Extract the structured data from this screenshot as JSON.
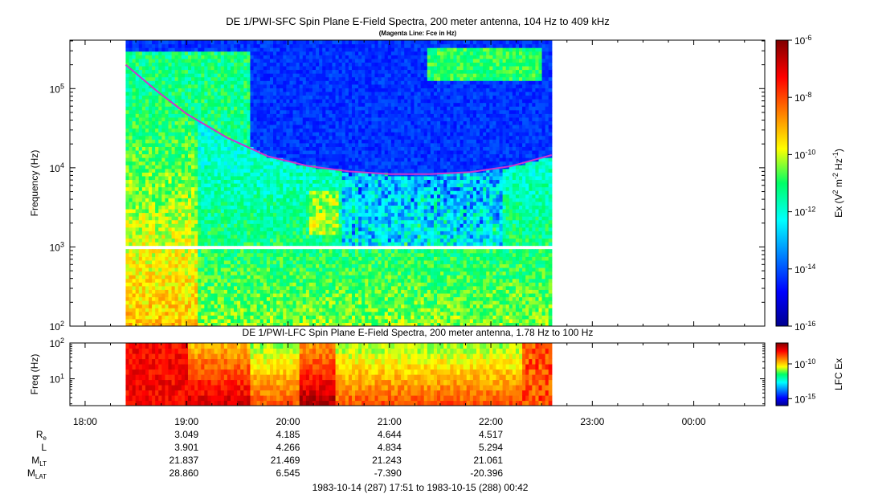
{
  "chart_data": [
    {
      "type": "heatmap",
      "title": "DE 1/PWI-SFC  Spin Plane E-Field Spectra, 200 meter antenna, 104 Hz to 409 kHz",
      "subtitle": "(Magenta Line: Fce in Hz)",
      "ylabel": "Frequency (Hz)",
      "y_scale": "log",
      "ylim": [
        100,
        409000
      ],
      "y_ticks": [
        {
          "value": 100,
          "base": "10",
          "exp": "2"
        },
        {
          "value": 1000,
          "base": "10",
          "exp": "3"
        },
        {
          "value": 10000,
          "base": "10",
          "exp": "4"
        },
        {
          "value": 100000,
          "base": "10",
          "exp": "5"
        }
      ],
      "x_range_hours": [
        17.85,
        24.7
      ],
      "data_time_range_hours": [
        18.4,
        22.6
      ],
      "colorbar": {
        "label": "Ex (V2 m-2 Hz-1)",
        "label_parts": [
          "Ex (V",
          "2",
          " m",
          "-2",
          " Hz",
          "-1",
          ")"
        ],
        "scale": "log",
        "range": [
          1e-16,
          1e-06
        ],
        "ticks": [
          {
            "value": 1e-06,
            "base": "10",
            "exp": "-6"
          },
          {
            "value": 1e-08,
            "base": "10",
            "exp": "-8"
          },
          {
            "value": 1e-10,
            "base": "10",
            "exp": "-10"
          },
          {
            "value": 1e-12,
            "base": "10",
            "exp": "-12"
          },
          {
            "value": 1e-14,
            "base": "10",
            "exp": "-14"
          },
          {
            "value": 1e-16,
            "base": "10",
            "exp": "-16"
          }
        ]
      },
      "series": [
        {
          "name": "Fce",
          "color": "#cc33cc",
          "x_hours": [
            18.4,
            18.7,
            19.0,
            19.4,
            19.8,
            20.2,
            20.6,
            21.0,
            21.4,
            21.8,
            22.2,
            22.6
          ],
          "y_hz": [
            200000,
            95000,
            48000,
            24000,
            14000,
            10500,
            9000,
            8300,
            8300,
            8800,
            10500,
            14500
          ]
        }
      ]
    },
    {
      "type": "heatmap",
      "title": "DE 1/PWI-LFC  Spin Plane E-Field Spectra, 200 meter antenna, 1.78 Hz to 100 Hz",
      "ylabel": "Freq (Hz)",
      "y_scale": "log",
      "ylim": [
        1.78,
        100
      ],
      "y_ticks": [
        {
          "value": 10,
          "base": "10",
          "exp": "1"
        },
        {
          "value": 100,
          "base": "10",
          "exp": "2"
        }
      ],
      "colorbar": {
        "label": "LFC Ex",
        "scale": "log",
        "range": [
          1e-16,
          1e-07
        ],
        "ticks": [
          {
            "value": 1e-10,
            "base": "10",
            "exp": "-10"
          },
          {
            "value": 1e-15,
            "base": "10",
            "exp": "-15"
          }
        ]
      }
    }
  ],
  "x_axis": {
    "ticks": [
      {
        "hour": 18,
        "label": "18:00"
      },
      {
        "hour": 19,
        "label": "19:00"
      },
      {
        "hour": 20,
        "label": "20:00"
      },
      {
        "hour": 21,
        "label": "21:00"
      },
      {
        "hour": 22,
        "label": "22:00"
      },
      {
        "hour": 23,
        "label": "23:00"
      },
      {
        "hour": 24,
        "label": "00:00"
      }
    ]
  },
  "ephemeris": {
    "rows": [
      {
        "name": "R",
        "sub": "e",
        "values": [
          "3.049",
          "4.185",
          "4.644",
          "4.517"
        ]
      },
      {
        "name": "L",
        "sub": "",
        "values": [
          "3.901",
          "4.266",
          "4.834",
          "5.294"
        ]
      },
      {
        "name": "M",
        "sub": "LT",
        "values": [
          "21.837",
          "21.469",
          "21.243",
          "21.061"
        ]
      },
      {
        "name": "M",
        "sub": "LAT",
        "values": [
          "28.860",
          "6.545",
          "-7.390",
          "-20.396"
        ]
      }
    ],
    "at_hours": [
      19,
      20,
      21,
      22
    ]
  },
  "footer": "1983-10-14 (287) 17:51 to 1983-10-15 (288) 00:42"
}
